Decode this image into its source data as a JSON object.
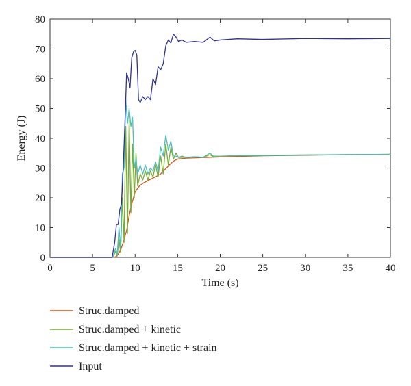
{
  "chart_data": {
    "type": "line",
    "title": "",
    "xlabel": "Time (s)",
    "ylabel": "Energy (J)",
    "xlim": [
      0,
      40
    ],
    "ylim": [
      0,
      80
    ],
    "xticks": [
      0,
      5,
      10,
      15,
      20,
      25,
      30,
      35,
      40
    ],
    "yticks": [
      0,
      10,
      20,
      30,
      40,
      50,
      60,
      70,
      80
    ],
    "grid": false,
    "legend_position": "bottom-left",
    "series": [
      {
        "name": "Struc.damped",
        "color": "#d95319",
        "points": [
          [
            0,
            0
          ],
          [
            7.5,
            0
          ],
          [
            7.8,
            0.3
          ],
          [
            8.0,
            1.0
          ],
          [
            8.3,
            2.5
          ],
          [
            8.6,
            5
          ],
          [
            9.0,
            9
          ],
          [
            9.3,
            14
          ],
          [
            9.6,
            18
          ],
          [
            10.0,
            22
          ],
          [
            10.5,
            24
          ],
          [
            11.0,
            25
          ],
          [
            11.5,
            25.8
          ],
          [
            12.0,
            26.5
          ],
          [
            12.5,
            27.2
          ],
          [
            13.0,
            28
          ],
          [
            13.5,
            29.5
          ],
          [
            14.0,
            31
          ],
          [
            14.5,
            32.3
          ],
          [
            15.0,
            33
          ],
          [
            16.0,
            33.3
          ],
          [
            18.0,
            33.5
          ],
          [
            20.0,
            33.7
          ],
          [
            22.0,
            33.9
          ],
          [
            25.0,
            34.1
          ],
          [
            30.0,
            34.3
          ],
          [
            35.0,
            34.5
          ],
          [
            40.0,
            34.6
          ]
        ]
      },
      {
        "name": "Struc.damped + kinetic",
        "color": "#77ac30",
        "points": [
          [
            0,
            0
          ],
          [
            7.4,
            0
          ],
          [
            7.7,
            2
          ],
          [
            7.9,
            0.5
          ],
          [
            8.1,
            6
          ],
          [
            8.3,
            1.5
          ],
          [
            8.5,
            20
          ],
          [
            8.7,
            5
          ],
          [
            8.9,
            44
          ],
          [
            9.1,
            8
          ],
          [
            9.3,
            46
          ],
          [
            9.5,
            15
          ],
          [
            9.7,
            38
          ],
          [
            9.9,
            20
          ],
          [
            10.1,
            35
          ],
          [
            10.3,
            24
          ],
          [
            10.6,
            28
          ],
          [
            10.9,
            26
          ],
          [
            11.2,
            29
          ],
          [
            11.5,
            26
          ],
          [
            11.8,
            29
          ],
          [
            12.1,
            27
          ],
          [
            12.4,
            31
          ],
          [
            12.7,
            27
          ],
          [
            13.0,
            34
          ],
          [
            13.3,
            28
          ],
          [
            13.6,
            38
          ],
          [
            13.9,
            31
          ],
          [
            14.2,
            37
          ],
          [
            14.5,
            33
          ],
          [
            14.8,
            35
          ],
          [
            15.1,
            33.5
          ],
          [
            15.5,
            34
          ],
          [
            16.0,
            33.5
          ],
          [
            17.0,
            33.8
          ],
          [
            18.0,
            33.6
          ],
          [
            18.8,
            34.5
          ],
          [
            19.2,
            33.7
          ],
          [
            20.0,
            33.9
          ],
          [
            22.0,
            34.1
          ],
          [
            25.0,
            34.2
          ],
          [
            30.0,
            34.4
          ],
          [
            35.0,
            34.5
          ],
          [
            40.0,
            34.6
          ]
        ]
      },
      {
        "name": "Struc.damped + kinetic + strain",
        "color": "#4dbeba",
        "points": [
          [
            0,
            0
          ],
          [
            7.4,
            0
          ],
          [
            7.7,
            3
          ],
          [
            7.9,
            1
          ],
          [
            8.1,
            10
          ],
          [
            8.3,
            3
          ],
          [
            8.5,
            28
          ],
          [
            8.7,
            30
          ],
          [
            8.9,
            53
          ],
          [
            9.1,
            45
          ],
          [
            9.3,
            50
          ],
          [
            9.5,
            44
          ],
          [
            9.7,
            47
          ],
          [
            9.9,
            30
          ],
          [
            10.1,
            33
          ],
          [
            10.3,
            28
          ],
          [
            10.6,
            31
          ],
          [
            10.9,
            28
          ],
          [
            11.2,
            31
          ],
          [
            11.5,
            28
          ],
          [
            11.8,
            30
          ],
          [
            12.1,
            29
          ],
          [
            12.4,
            32
          ],
          [
            12.7,
            29
          ],
          [
            13.0,
            37
          ],
          [
            13.3,
            34
          ],
          [
            13.6,
            41
          ],
          [
            13.9,
            36
          ],
          [
            14.2,
            39
          ],
          [
            14.5,
            34
          ],
          [
            14.8,
            34
          ],
          [
            15.2,
            33.5
          ],
          [
            16.0,
            33.6
          ],
          [
            17.0,
            33.8
          ],
          [
            18.0,
            33.6
          ],
          [
            18.8,
            35
          ],
          [
            19.2,
            34
          ],
          [
            20.0,
            34
          ],
          [
            22.0,
            34.2
          ],
          [
            25.0,
            34.3
          ],
          [
            30.0,
            34.4
          ],
          [
            35.0,
            34.5
          ],
          [
            40.0,
            34.6
          ]
        ]
      },
      {
        "name": "Input",
        "color": "#2e3192",
        "points": [
          [
            0,
            0
          ],
          [
            7.3,
            0
          ],
          [
            7.6,
            5
          ],
          [
            7.8,
            11
          ],
          [
            8.0,
            11
          ],
          [
            8.2,
            16
          ],
          [
            8.4,
            18
          ],
          [
            8.6,
            30
          ],
          [
            8.8,
            45
          ],
          [
            9.0,
            62
          ],
          [
            9.2,
            60
          ],
          [
            9.4,
            57
          ],
          [
            9.6,
            67
          ],
          [
            9.8,
            69
          ],
          [
            10.0,
            69.5
          ],
          [
            10.2,
            68
          ],
          [
            10.4,
            53
          ],
          [
            10.6,
            52
          ],
          [
            10.9,
            54
          ],
          [
            11.2,
            53
          ],
          [
            11.5,
            54
          ],
          [
            11.8,
            53
          ],
          [
            12.1,
            60
          ],
          [
            12.4,
            58
          ],
          [
            12.7,
            64
          ],
          [
            13.0,
            63
          ],
          [
            13.3,
            65
          ],
          [
            13.6,
            71
          ],
          [
            13.9,
            73
          ],
          [
            14.2,
            72
          ],
          [
            14.5,
            75
          ],
          [
            14.8,
            74
          ],
          [
            15.1,
            72.5
          ],
          [
            15.5,
            73
          ],
          [
            16.0,
            72.2
          ],
          [
            17.0,
            72.5
          ],
          [
            18.0,
            72.2
          ],
          [
            18.8,
            74
          ],
          [
            19.3,
            72.7
          ],
          [
            20.0,
            73
          ],
          [
            22.0,
            73.4
          ],
          [
            25.0,
            73.2
          ],
          [
            30.0,
            73.5
          ],
          [
            35.0,
            73.4
          ],
          [
            40.0,
            73.5
          ]
        ]
      }
    ]
  }
}
